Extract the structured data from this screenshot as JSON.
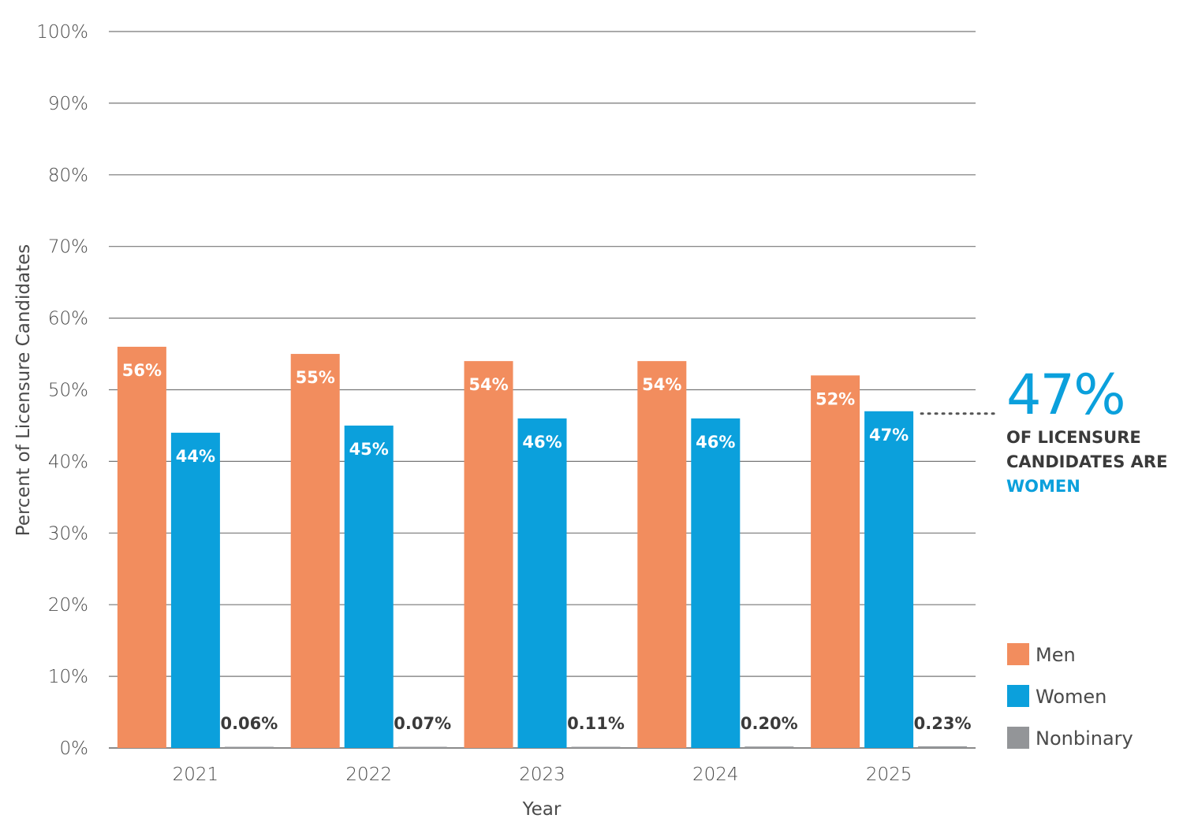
{
  "chart_data": {
    "type": "bar",
    "title": "",
    "xlabel": "Year",
    "ylabel": "Percent of Licensure Candidates",
    "ylim": [
      0,
      100
    ],
    "yticks": [
      "0%",
      "10%",
      "20%",
      "30%",
      "40%",
      "50%",
      "60%",
      "70%",
      "80%",
      "90%",
      "100%"
    ],
    "grid": true,
    "legend_position": "right-bottom",
    "categories": [
      "2021",
      "2022",
      "2023",
      "2024",
      "2025"
    ],
    "series": [
      {
        "name": "Men",
        "color": "#f28d5e",
        "values": [
          56,
          55,
          54,
          54,
          52
        ],
        "labels": [
          "56%",
          "55%",
          "54%",
          "54%",
          "52%"
        ]
      },
      {
        "name": "Women",
        "color": "#0ba0dc",
        "values": [
          44,
          45,
          46,
          46,
          47
        ],
        "labels": [
          "44%",
          "45%",
          "46%",
          "46%",
          "47%"
        ]
      },
      {
        "name": "Nonbinary",
        "color": "#939598",
        "values": [
          0.06,
          0.07,
          0.11,
          0.2,
          0.23
        ],
        "labels": [
          "0.06%",
          "0.07%",
          "0.11%",
          "0.20%",
          "0.23%"
        ]
      }
    ]
  },
  "callout": {
    "value": "47%",
    "line1": "OF LICENSURE",
    "line2": "CANDIDATES ARE",
    "line3": "WOMEN"
  }
}
